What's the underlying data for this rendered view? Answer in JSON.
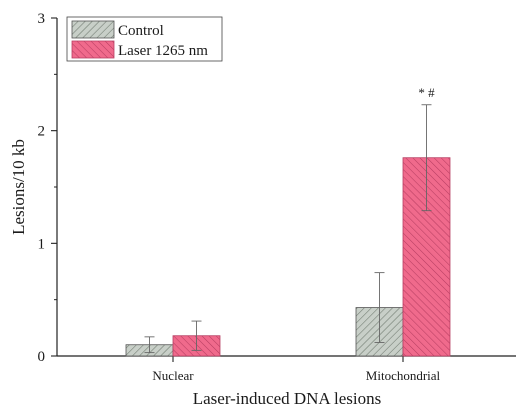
{
  "chart_data": {
    "type": "bar",
    "categories": [
      "Nuclear",
      "Mitochondrial"
    ],
    "series": [
      {
        "name": "Control",
        "values": [
          0.1,
          0.43
        ],
        "errors": [
          0.07,
          0.31
        ],
        "color": "#c8cfc8",
        "pattern": "hatch-left"
      },
      {
        "name": "Laser 1265 nm",
        "values": [
          0.18,
          1.76
        ],
        "errors": [
          0.13,
          0.47
        ],
        "color": "#f06a8c",
        "pattern": "hatch-right"
      }
    ],
    "xlabel": "Laser-induced DNA lesions",
    "ylabel": "Lesions/10 kb",
    "ylim": [
      0,
      3
    ],
    "yticks": [
      0,
      1,
      2,
      3
    ],
    "annotations": [
      {
        "text": "* #",
        "category": "Mitochondrial",
        "series": "Laser 1265 nm"
      }
    ],
    "legend_position": "top-left",
    "grid": false
  }
}
